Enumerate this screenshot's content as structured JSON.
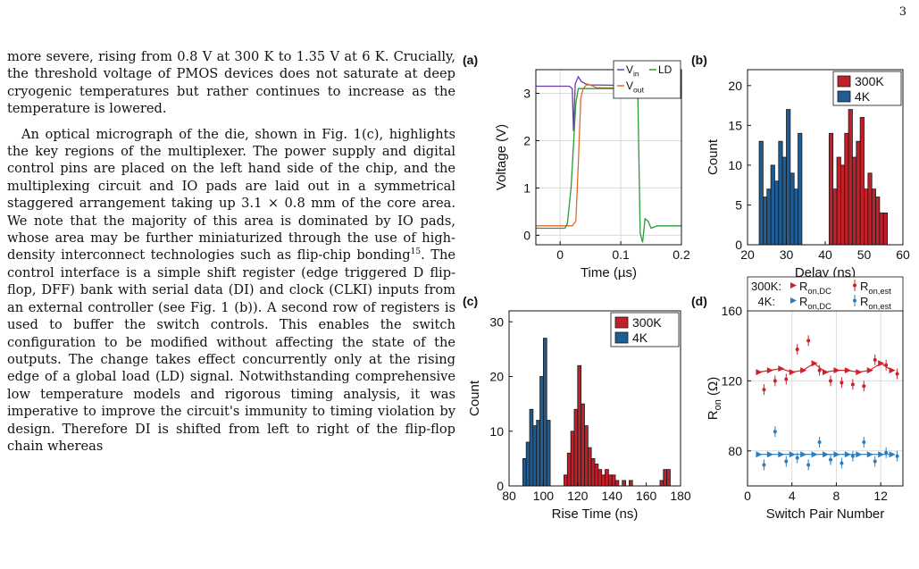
{
  "page_number": "3",
  "text": {
    "p1": "more severe, rising from 0.8 V at 300 K to 1.35 V at 6 K. Crucially, the threshold voltage of PMOS devices does not saturate at deep cryogenic temperatures but rather continues to increase as the temperature is lowered.",
    "p2a": "An optical micrograph of the die, shown in Fig. 1(c), highlights the key regions of the multiplexer. The power supply and digital control pins are placed on the left hand side of the chip, and the multiplexing circuit and IO pads are laid out in a symmetrical staggered arrangement taking up 3.1 × 0.8 mm of the core area. We note that the majority of this area is dominated by IO pads, whose area may be further miniaturized through the use of high-density interconnect technologies such as flip-chip bonding",
    "p2_ref": "15",
    "p2b": ". The control interface is a simple shift register (edge triggered D flip-flop, DFF) bank with serial data (DI) and clock (CLKI) inputs from an external controller (see Fig. 1 (b)). A second row of registers is used to buffer the switch controls. This enables the switch configuration to be modified without affecting the state of the outputs. The change takes effect concurrently only at the rising edge of a global load (LD) signal. Notwithstanding comprehensive low temperature models and rigorous timing analysis, it was imperative to improve the circuit's immunity to timing violation by design. Therefore DI is shifted from left to right of the flip-flop chain whereas"
  },
  "chart_data": [
    {
      "panel": "(a)",
      "type": "line",
      "xlabel": "Time (µs)",
      "ylabel": "Voltage (V)",
      "xlim": [
        -0.04,
        0.2
      ],
      "ylim": [
        -0.2,
        3.5
      ],
      "xticks": [
        0,
        0.1,
        0.2
      ],
      "yticks": [
        0,
        1,
        2,
        3
      ],
      "grid": true,
      "legend": "top-right",
      "series": [
        {
          "name": "V",
          "sub": "in",
          "color": "#6a3aa8",
          "x": [
            -0.04,
            0.015,
            0.02,
            0.022,
            0.025,
            0.03,
            0.035,
            0.045,
            0.2
          ],
          "y": [
            3.15,
            3.15,
            3.1,
            2.2,
            3.2,
            3.35,
            3.25,
            3.18,
            3.15
          ]
        },
        {
          "name": "V",
          "sub": "out",
          "color": "#e06a2a",
          "x": [
            -0.04,
            0.02,
            0.026,
            0.03,
            0.034,
            0.038,
            0.045,
            0.06,
            0.2
          ],
          "y": [
            0.2,
            0.2,
            0.3,
            1.5,
            2.9,
            3.1,
            3.2,
            3.12,
            3.1
          ]
        },
        {
          "name": "LD",
          "color": "#2a9a3a",
          "x": [
            -0.04,
            0.008,
            0.012,
            0.018,
            0.026,
            0.03,
            0.12,
            0.128,
            0.132,
            0.136,
            0.14,
            0.145,
            0.15,
            0.16,
            0.2
          ],
          "y": [
            0.15,
            0.15,
            0.25,
            1.0,
            2.8,
            3.1,
            3.1,
            3.05,
            0.05,
            -0.15,
            0.35,
            0.3,
            0.15,
            0.2,
            0.2
          ]
        }
      ]
    },
    {
      "panel": "(b)",
      "type": "bar",
      "xlabel": "Delay (ns)",
      "ylabel": "Count",
      "xlim": [
        20,
        60
      ],
      "ylim": [
        0,
        22
      ],
      "xticks": [
        20,
        30,
        40,
        50,
        60
      ],
      "yticks": [
        0,
        5,
        10,
        15,
        20
      ],
      "bin_width": 1,
      "legend": "top-right",
      "series": [
        {
          "name": "300K",
          "color": "#c0202a",
          "bins": [
            41,
            42,
            43,
            44,
            45,
            46,
            47,
            48,
            49,
            50,
            51,
            52,
            53,
            54,
            55
          ],
          "counts": [
            14,
            7,
            11,
            10,
            14,
            17,
            11,
            13,
            16,
            7,
            9,
            7,
            6,
            4,
            4
          ]
        },
        {
          "name": "4K",
          "color": "#1f5c93",
          "bins": [
            23,
            24,
            25,
            26,
            27,
            28,
            29,
            30,
            31,
            32,
            33
          ],
          "counts": [
            13,
            6,
            7,
            10,
            8,
            13,
            11,
            17,
            9,
            7,
            14
          ]
        }
      ]
    },
    {
      "panel": "(c)",
      "type": "bar",
      "xlabel": "Rise Time (ns)",
      "ylabel": "Count",
      "xlim": [
        80,
        180
      ],
      "ylim": [
        0,
        32
      ],
      "xticks": [
        80,
        100,
        120,
        140,
        160,
        180
      ],
      "yticks": [
        0,
        10,
        20,
        30
      ],
      "bin_width": 2,
      "legend": "top-right",
      "series": [
        {
          "name": "300K",
          "color": "#c0202a",
          "bins": [
            112,
            114,
            116,
            118,
            120,
            122,
            124,
            126,
            128,
            130,
            132,
            134,
            136,
            138,
            140,
            142,
            146,
            150,
            168,
            170,
            172
          ],
          "counts": [
            2,
            6,
            10,
            14,
            22,
            15,
            11,
            7,
            5,
            4,
            3,
            2,
            3,
            2,
            2,
            1,
            1,
            1,
            1,
            3,
            3
          ]
        },
        {
          "name": "4K",
          "color": "#1f5c93",
          "bins": [
            88,
            90,
            92,
            94,
            96,
            98,
            100,
            102
          ],
          "counts": [
            5,
            8,
            14,
            11,
            12,
            20,
            27,
            12
          ]
        }
      ]
    },
    {
      "panel": "(d)",
      "type": "line",
      "xlabel": "Switch Pair Number",
      "ylabel": "R",
      "ylabel_sub": "on",
      "ylabel_unit": " (Ω)",
      "xlim": [
        0,
        14
      ],
      "ylim": [
        60,
        160
      ],
      "xticks": [
        0,
        4,
        8,
        12
      ],
      "yticks": [
        80,
        120,
        160
      ],
      "grid": true,
      "legend": {
        "row1_label": "300K:",
        "row2_label": "4K:",
        "r_main": "R",
        "sub_dc": "on,DC",
        "sub_est": "on,est"
      },
      "series": [
        {
          "name": "R",
          "sub": "on,DC",
          "group": "300K",
          "color": "#d0202a",
          "marker": "triangle",
          "x": [
            1,
            2,
            3,
            4,
            5,
            6,
            7,
            8,
            9,
            10,
            11,
            12,
            13
          ],
          "y": [
            125,
            126,
            127,
            125,
            126,
            130,
            125,
            126,
            126,
            125,
            126,
            130,
            126
          ]
        },
        {
          "name": "R",
          "sub": "on,est",
          "group": "300K",
          "color": "#d0202a",
          "marker": "errorbar",
          "x": [
            1,
            2,
            3,
            4,
            5,
            6,
            7,
            8,
            9,
            10,
            11,
            12,
            13
          ],
          "y": [
            115,
            120,
            121,
            138,
            143,
            126,
            120,
            119,
            118,
            117,
            132,
            129,
            124
          ]
        },
        {
          "name": "R",
          "sub": "on,DC",
          "group": "4K",
          "color": "#2a7ec0",
          "marker": "triangle",
          "x": [
            1,
            2,
            3,
            4,
            5,
            6,
            7,
            8,
            9,
            10,
            11,
            12,
            13
          ],
          "y": [
            78,
            78,
            78,
            78,
            78,
            78,
            78,
            78,
            78,
            78,
            78,
            78,
            78
          ]
        },
        {
          "name": "R",
          "sub": "on,est",
          "group": "4K",
          "color": "#2a7ec0",
          "marker": "errorbar",
          "x": [
            1,
            2,
            3,
            4,
            5,
            6,
            7,
            8,
            9,
            10,
            11,
            12,
            13
          ],
          "y": [
            72,
            91,
            74,
            76,
            72,
            85,
            75,
            73,
            77,
            85,
            74,
            79,
            77
          ]
        }
      ]
    }
  ]
}
